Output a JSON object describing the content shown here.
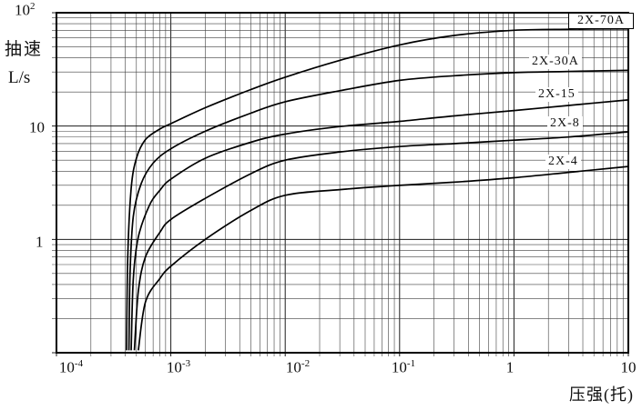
{
  "chart_data": {
    "type": "line",
    "scale": "log-log",
    "title": "",
    "ylabel_line1": "抽速",
    "ylabel_line2": "L/s",
    "xlabel": "压强(托)",
    "x_range": [
      0.0001,
      10
    ],
    "y_range": [
      0.1,
      100
    ],
    "grid": "full logarithmic minor grid, black on white",
    "x_ticks": [
      {
        "base": "10",
        "exp": "-4",
        "log": -4
      },
      {
        "base": "10",
        "exp": "-3",
        "log": -3
      },
      {
        "base": "10",
        "exp": "-2",
        "log": -2
      },
      {
        "base": "10",
        "exp": "-1",
        "log": -1
      },
      {
        "base": "1",
        "exp": "",
        "log": 0
      },
      {
        "base": "10",
        "exp": "",
        "log": 1
      }
    ],
    "y_ticks": [
      {
        "base": "10",
        "exp": "2",
        "log": 2
      },
      {
        "base": "10",
        "exp": "",
        "log": 1
      },
      {
        "base": "1",
        "exp": "",
        "log": 0
      }
    ],
    "series": [
      {
        "name": "2X-70A",
        "points": [
          [
            0.00041,
            0.105
          ],
          [
            0.00042,
            0.7
          ],
          [
            0.00045,
            2.8
          ],
          [
            0.0005,
            5.2
          ],
          [
            0.0006,
            7.6
          ],
          [
            0.0008,
            9.4
          ],
          [
            0.001,
            10.5
          ],
          [
            0.002,
            14.5
          ],
          [
            0.005,
            21
          ],
          [
            0.01,
            27
          ],
          [
            0.03,
            38
          ],
          [
            0.1,
            52
          ],
          [
            0.3,
            63
          ],
          [
            1,
            70
          ],
          [
            3,
            71.5
          ],
          [
            10,
            72
          ]
        ]
      },
      {
        "name": "2X-30A",
        "points": [
          [
            0.00043,
            0.105
          ],
          [
            0.00044,
            0.5
          ],
          [
            0.00047,
            1.6
          ],
          [
            0.00055,
            3.1
          ],
          [
            0.0007,
            4.7
          ],
          [
            0.001,
            6.3
          ],
          [
            0.002,
            9.0
          ],
          [
            0.005,
            13
          ],
          [
            0.01,
            16.4
          ],
          [
            0.03,
            20.5
          ],
          [
            0.1,
            25.3
          ],
          [
            0.3,
            27.8
          ],
          [
            1,
            29.6
          ],
          [
            3,
            30.3
          ],
          [
            10,
            31
          ]
        ]
      },
      {
        "name": "2X-15",
        "points": [
          [
            0.00045,
            0.105
          ],
          [
            0.00047,
            0.45
          ],
          [
            0.00052,
            1.05
          ],
          [
            0.00065,
            2.0
          ],
          [
            0.0008,
            2.7
          ],
          [
            0.001,
            3.4
          ],
          [
            0.002,
            5.2
          ],
          [
            0.005,
            7.2
          ],
          [
            0.01,
            8.5
          ],
          [
            0.03,
            9.9
          ],
          [
            0.1,
            11
          ],
          [
            0.3,
            12.3
          ],
          [
            1,
            13.7
          ],
          [
            3,
            15.2
          ],
          [
            10,
            17
          ]
        ]
      },
      {
        "name": "2X-8",
        "points": [
          [
            0.00048,
            0.105
          ],
          [
            0.00052,
            0.35
          ],
          [
            0.0006,
            0.7
          ],
          [
            0.0008,
            1.15
          ],
          [
            0.001,
            1.5
          ],
          [
            0.002,
            2.3
          ],
          [
            0.005,
            3.8
          ],
          [
            0.01,
            5.0
          ],
          [
            0.03,
            5.9
          ],
          [
            0.1,
            6.6
          ],
          [
            0.3,
            7.0
          ],
          [
            1,
            7.5
          ],
          [
            3,
            8.0
          ],
          [
            10,
            8.9
          ]
        ]
      },
      {
        "name": "2X-4",
        "points": [
          [
            0.00052,
            0.105
          ],
          [
            0.0006,
            0.28
          ],
          [
            0.0008,
            0.45
          ],
          [
            0.001,
            0.58
          ],
          [
            0.002,
            1.0
          ],
          [
            0.005,
            1.8
          ],
          [
            0.01,
            2.45
          ],
          [
            0.03,
            2.75
          ],
          [
            0.1,
            3.0
          ],
          [
            0.3,
            3.2
          ],
          [
            1,
            3.5
          ],
          [
            3,
            3.9
          ],
          [
            10,
            4.4
          ]
        ]
      }
    ],
    "curve_color": "#000000",
    "grid_major_color": "#1c1c1c",
    "grid_minor_color": "#3f3f3f",
    "legend_position": "labels beside curves at right, top one boxed"
  }
}
